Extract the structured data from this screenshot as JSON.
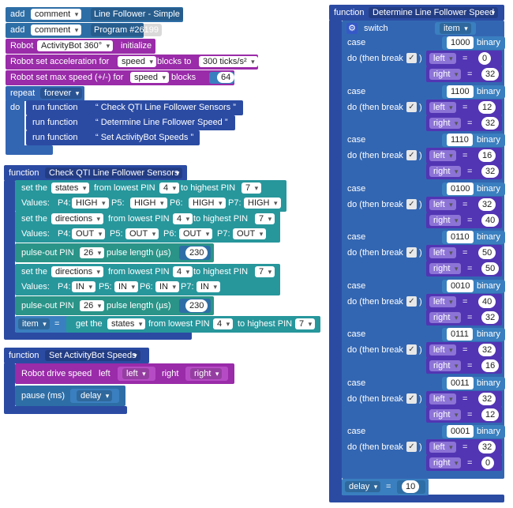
{
  "colors": {
    "function": "#2b4ba3",
    "program": "#2e6ea6",
    "robot": "#9a2ba9",
    "robot_light": "#b64cc5",
    "variable": "#3a7fbf",
    "logic": "#27979c",
    "pin": "#2a9488",
    "control": "#3366b2",
    "assign": "#5235b3",
    "value_var": "#8c73d6",
    "workspace": "#ffffff"
  },
  "main": {
    "add1": {
      "label": "add",
      "kind": "comment",
      "text": "Line Follower - Simple"
    },
    "add2": {
      "label": "add",
      "kind": "comment",
      "text": "Program #26199"
    },
    "robot_init": {
      "label": "Robot",
      "device": "ActivityBot 360°",
      "action": "initialize"
    },
    "accel": {
      "label": "Robot set acceleration for",
      "param": "speed",
      "mid": "blocks to",
      "value": "300 ticks/s²"
    },
    "maxspeed": {
      "label": "Robot set max speed (+/-) for",
      "param": "speed",
      "mid": "blocks",
      "value": "64"
    },
    "repeat": {
      "label": "repeat",
      "mode": "forever",
      "do": "do"
    },
    "runs": [
      {
        "label": "run function",
        "name": "Check QTI Line Follower Sensors"
      },
      {
        "label": "run function",
        "name": "Determine Line Follower Speed"
      },
      {
        "label": "run function",
        "name": "Set ActivityBot Speeds"
      }
    ]
  },
  "check_fn": {
    "label": "function",
    "name": "Check QTI Line Follower Sensors",
    "set1": {
      "a": "set the",
      "var": "states",
      "b": "from lowest PIN",
      "low": "4",
      "c": "to highest PIN",
      "high": "7"
    },
    "vals1": {
      "label": "Values:",
      "p4": "P4:",
      "v4": "HIGH",
      "p5": "P5:",
      "v5": "HIGH",
      "p6": "P6:",
      "v6": "HIGH",
      "p7": "P7:",
      "v7": "HIGH"
    },
    "set2": {
      "a": "set the",
      "var": "directions",
      "b": "from lowest PIN",
      "low": "4",
      "c": "to highest PIN",
      "high": "7"
    },
    "vals2": {
      "label": "Values:",
      "p4": "P4:",
      "v4": "OUT",
      "p5": "P5:",
      "v5": "OUT",
      "p6": "P6:",
      "v6": "OUT",
      "p7": "P7:",
      "v7": "OUT"
    },
    "pulse1": {
      "a": "pulse-out PIN",
      "pin": "26",
      "b": "pulse length (µs)",
      "len": "230"
    },
    "set3": {
      "a": "set the",
      "var": "directions",
      "b": "from lowest PIN",
      "low": "4",
      "c": "to highest PIN",
      "high": "7"
    },
    "vals3": {
      "label": "Values:",
      "p4": "P4:",
      "v4": "IN",
      "p5": "P5:",
      "v5": "IN",
      "p6": "P6:",
      "v6": "IN",
      "p7": "P7:",
      "v7": "IN"
    },
    "pulse2": {
      "a": "pulse-out PIN",
      "pin": "26",
      "b": "pulse length (µs)",
      "len": "230"
    },
    "item": {
      "var": "item",
      "eq": "=",
      "a": "get the",
      "state": "states",
      "b": "from lowest PIN",
      "low": "4",
      "c": "to highest PIN",
      "high": "7"
    }
  },
  "speeds_fn": {
    "label": "function",
    "name": "Set ActivityBot Speeds",
    "drive": {
      "label": "Robot drive speed",
      "left_lbl": "left",
      "left": "left",
      "right_lbl": "right",
      "right": "right"
    },
    "pause": {
      "label": "pause (ms)",
      "var": "delay"
    }
  },
  "det_fn": {
    "label": "function",
    "name": "Determine Line Follower Speed",
    "switch_label": "switch",
    "switch_var": "item",
    "case_label": "case",
    "do_label": "do (then break",
    "close_paren": ")",
    "binary": "binary",
    "left_var": "left",
    "right_var": "right",
    "eq": "=",
    "cases": [
      {
        "value": "1000",
        "left": "0",
        "right": "32"
      },
      {
        "value": "1100",
        "left": "12",
        "right": "32"
      },
      {
        "value": "1110",
        "left": "16",
        "right": "32"
      },
      {
        "value": "0100",
        "left": "32",
        "right": "40"
      },
      {
        "value": "0110",
        "left": "50",
        "right": "50"
      },
      {
        "value": "0010",
        "left": "40",
        "right": "32"
      },
      {
        "value": "0111",
        "left": "32",
        "right": "16"
      },
      {
        "value": "0011",
        "left": "32",
        "right": "12"
      },
      {
        "value": "0001",
        "left": "32",
        "right": "0"
      }
    ],
    "delay": {
      "var": "delay",
      "eq": "=",
      "value": "10"
    }
  }
}
